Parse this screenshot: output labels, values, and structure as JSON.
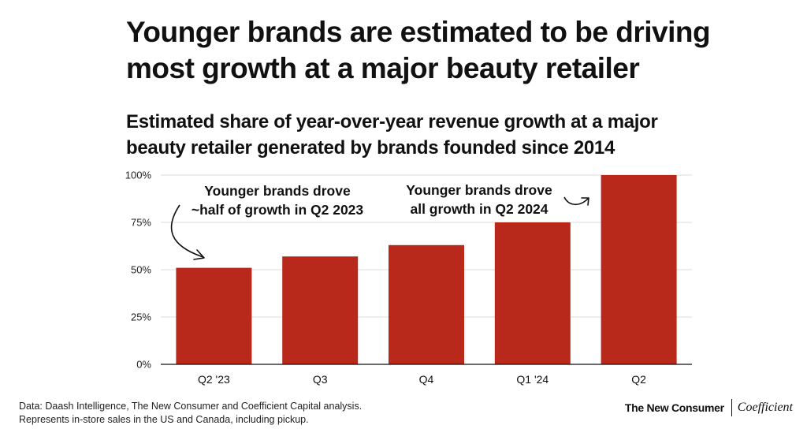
{
  "header": {
    "title_line1": "Younger brands are estimated to be driving",
    "title_line2": "most growth at a major beauty retailer",
    "subtitle_line1": "Estimated share of year-over-year revenue growth at a major",
    "subtitle_line2": "beauty retailer generated by brands founded since 2014"
  },
  "chart_data": {
    "type": "bar",
    "title": "Estimated share of year-over-year revenue growth at a major beauty retailer generated by brands founded since 2014",
    "categories": [
      "Q2 '23",
      "Q3",
      "Q4",
      "Q1 '24",
      "Q2"
    ],
    "values": [
      51,
      57,
      63,
      75,
      100
    ],
    "unit": "%",
    "ylim": [
      0,
      100
    ],
    "yticks": [
      0,
      25,
      50,
      75,
      100
    ],
    "ytick_labels": [
      "0%",
      "25%",
      "50%",
      "75%",
      "100%"
    ],
    "grid": true,
    "bar_color": "#b8281b",
    "annotations": [
      {
        "category": "Q2 '23",
        "lines": [
          "Younger brands drove",
          "~half of growth in Q2 2023"
        ]
      },
      {
        "category": "Q2",
        "lines": [
          "Younger brands drove",
          "all growth in Q2 2024"
        ]
      }
    ]
  },
  "footer": {
    "source_line1": "Data: Daash Intelligence, The New Consumer and Coefficient Capital analysis.",
    "source_line2": "Represents in-store sales in the US and Canada, including pickup.",
    "logo_left": "The New Consumer",
    "logo_right": "Coefficient"
  }
}
